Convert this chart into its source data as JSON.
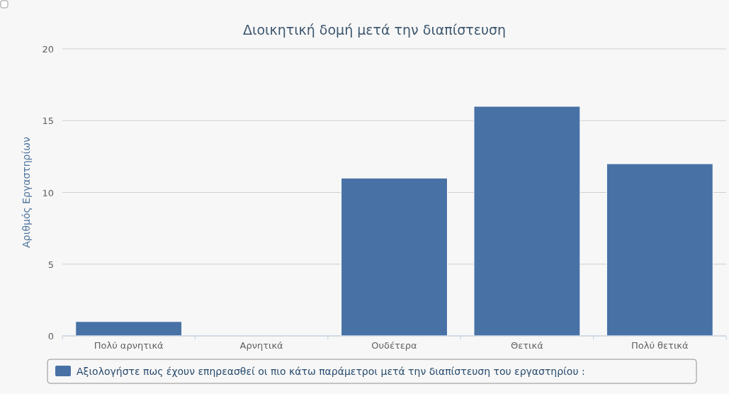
{
  "chart_data": {
    "type": "bar",
    "title": "Διοικητική δομή μετά την διαπίστευση",
    "ylabel": "Αριθμός Εργαστηρίων",
    "categories": [
      "Πολύ αρνητικά",
      "Αρνητικά",
      "Ουδέτερα",
      "Θετικά",
      "Πολύ θετικά"
    ],
    "series": [
      {
        "name": "Αξιολογήστε πως έχουν επηρεασθεί οι πιο κάτω παράμετροι μετά την διαπίστευση του εργαστηρίου :",
        "color": "#4872a6",
        "values": [
          1,
          0,
          11,
          16,
          12
        ]
      }
    ],
    "ylim": [
      0,
      20
    ],
    "yticks": [
      0,
      5,
      10,
      15,
      20
    ],
    "grid": "y",
    "legend": "bottom"
  }
}
